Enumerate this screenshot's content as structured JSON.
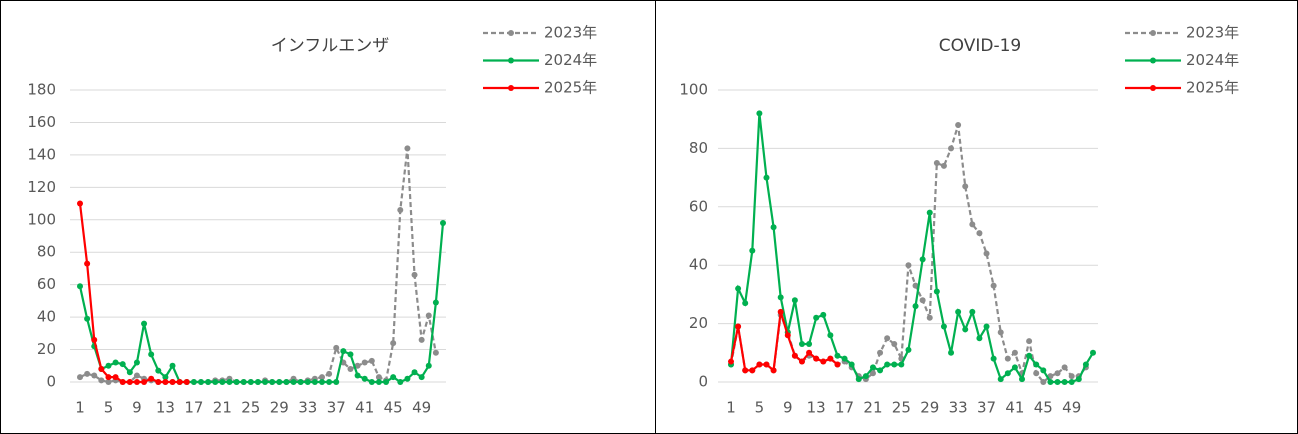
{
  "chart_data": [
    {
      "type": "line",
      "title": "インフルエンザ",
      "categories": [
        1,
        null,
        null,
        null,
        5,
        null,
        null,
        null,
        9,
        null,
        null,
        null,
        13,
        null,
        null,
        null,
        17,
        null,
        null,
        null,
        21,
        null,
        null,
        null,
        25,
        null,
        null,
        null,
        29,
        null,
        null,
        null,
        33,
        null,
        null,
        null,
        37,
        null,
        null,
        null,
        41,
        null,
        null,
        null,
        45,
        null,
        null,
        null,
        49,
        null,
        null,
        null
      ],
      "ylim": [
        0,
        180
      ],
      "yticks": [
        0,
        20,
        40,
        60,
        80,
        100,
        120,
        140,
        160,
        180
      ],
      "grid": true,
      "legend": "top-right",
      "series": [
        {
          "name": "2023年",
          "color": "#8c8c8c",
          "dashed": true,
          "values": [
            3,
            5,
            4,
            1,
            0,
            1,
            0,
            0,
            4,
            2,
            1,
            0,
            0,
            0,
            0,
            0,
            0,
            0,
            0,
            1,
            1,
            2,
            0,
            0,
            0,
            0,
            1,
            0,
            0,
            0,
            2,
            0,
            1,
            2,
            3,
            5,
            21,
            12,
            8,
            10,
            12,
            13,
            3,
            1,
            24,
            106,
            144,
            66,
            26,
            41,
            18,
            null
          ]
        },
        {
          "name": "2024年",
          "color": "#00b050",
          "dashed": false,
          "values": [
            59,
            39,
            22,
            8,
            10,
            12,
            11,
            6,
            12,
            36,
            17,
            7,
            3,
            10,
            0,
            0,
            0,
            0,
            0,
            0,
            0,
            0,
            0,
            0,
            0,
            0,
            0,
            0,
            0,
            0,
            0,
            0,
            0,
            0,
            0,
            0,
            0,
            19,
            17,
            4,
            2,
            0,
            0,
            0,
            3,
            0,
            2,
            6,
            3,
            10,
            49,
            98
          ]
        },
        {
          "name": "2025年",
          "color": "#ff0000",
          "dashed": false,
          "values": [
            110,
            73,
            26,
            8,
            3,
            3,
            0,
            0,
            0,
            0,
            2,
            0,
            0,
            0,
            0,
            0,
            null,
            null,
            null,
            null,
            null,
            null,
            null,
            null,
            null,
            null,
            null,
            null,
            null,
            null,
            null,
            null,
            null,
            null,
            null,
            null,
            null,
            null,
            null,
            null,
            null,
            null,
            null,
            null,
            null,
            null,
            null,
            null,
            null,
            null,
            null,
            null
          ]
        }
      ]
    },
    {
      "type": "line",
      "title": "COVID-19",
      "categories": [
        1,
        null,
        null,
        null,
        5,
        null,
        null,
        null,
        9,
        null,
        null,
        null,
        13,
        null,
        null,
        null,
        17,
        null,
        null,
        null,
        21,
        null,
        null,
        null,
        25,
        null,
        null,
        null,
        29,
        null,
        null,
        null,
        33,
        null,
        null,
        null,
        37,
        null,
        null,
        null,
        41,
        null,
        null,
        null,
        45,
        null,
        null,
        null,
        49,
        null,
        null,
        null
      ],
      "ylim": [
        0,
        100
      ],
      "yticks": [
        0,
        20,
        40,
        60,
        80,
        100
      ],
      "grid": true,
      "legend": "top-right",
      "series": [
        {
          "name": "2023年",
          "color": "#8c8c8c",
          "dashed": true,
          "values": [
            6,
            19,
            4,
            4,
            6,
            6,
            4,
            23,
            17,
            9,
            7,
            9,
            8,
            7,
            8,
            6,
            7,
            5,
            2,
            1,
            3,
            10,
            15,
            13,
            8,
            40,
            33,
            28,
            22,
            75,
            74,
            80,
            88,
            67,
            54,
            51,
            44,
            33,
            17,
            8,
            10,
            3,
            14,
            3,
            0,
            2,
            3,
            5,
            2,
            2,
            5,
            null
          ]
        },
        {
          "name": "2024年",
          "color": "#00b050",
          "dashed": false,
          "values": [
            6,
            32,
            27,
            45,
            92,
            70,
            53,
            29,
            17,
            28,
            13,
            13,
            22,
            23,
            16,
            9,
            8,
            6,
            1,
            2,
            5,
            4,
            6,
            6,
            6,
            11,
            26,
            42,
            58,
            31,
            19,
            10,
            24,
            18,
            24,
            15,
            19,
            8,
            1,
            3,
            5,
            1,
            9,
            6,
            4,
            0,
            0,
            0,
            0,
            1,
            6,
            10
          ]
        },
        {
          "name": "2025年",
          "color": "#ff0000",
          "dashed": false,
          "values": [
            7,
            19,
            4,
            4,
            6,
            6,
            4,
            24,
            16,
            9,
            7,
            10,
            8,
            7,
            8,
            6,
            null,
            null,
            null,
            null,
            null,
            null,
            null,
            null,
            null,
            null,
            null,
            null,
            null,
            null,
            null,
            null,
            null,
            null,
            null,
            null,
            null,
            null,
            null,
            null,
            null,
            null,
            null,
            null,
            null,
            null,
            null,
            null,
            null,
            null,
            null,
            null
          ]
        }
      ]
    }
  ]
}
